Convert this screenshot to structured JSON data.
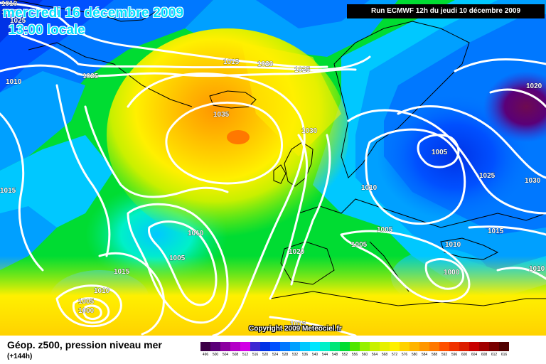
{
  "header": {
    "title_date": "mercredi 16 décembre 2009",
    "title_time": "13:00 locale",
    "run_label": "Run ECMWF 12h du jeudi 10 décembre 2009"
  },
  "map": {
    "copyright": "Copyright 2009 Meteociel.fr",
    "isobar_color": "#ffffff",
    "land_outline_color": "#000000",
    "isobar_labels": [
      {
        "text": "1010",
        "id": "iso-1010-topleft-a"
      },
      {
        "text": "1010",
        "id": "iso-1010-topleft-b"
      },
      {
        "text": "1025",
        "id": "iso-1025-topleft"
      },
      {
        "text": "1025",
        "id": "iso-1025-atlantic-north"
      },
      {
        "text": "1010",
        "id": "iso-1010-west"
      },
      {
        "text": "1015",
        "id": "iso-1015-north"
      },
      {
        "text": "1020",
        "id": "iso-1020-north"
      },
      {
        "text": "1025",
        "id": "iso-1025-north"
      },
      {
        "text": "1035",
        "id": "iso-1035-high"
      },
      {
        "text": "1030",
        "id": "iso-1030-britain"
      },
      {
        "text": "1005",
        "id": "iso-1005-scandinavia"
      },
      {
        "text": "1025",
        "id": "iso-1025-russia"
      },
      {
        "text": "1030",
        "id": "iso-1030-east"
      },
      {
        "text": "1020",
        "id": "iso-1020-ne"
      },
      {
        "text": "1010",
        "id": "iso-1010-europe"
      },
      {
        "text": "1015",
        "id": "iso-1015-west-edge"
      },
      {
        "text": "1010",
        "id": "iso-1010-atlantic-low"
      },
      {
        "text": "1005",
        "id": "iso-1005-atlantic-low"
      },
      {
        "text": "1015",
        "id": "iso-1015-atlantic"
      },
      {
        "text": "1010",
        "id": "iso-1010-sw"
      },
      {
        "text": "1005",
        "id": "iso-1005-sw"
      },
      {
        "text": "1000",
        "id": "iso-1000-sw"
      },
      {
        "text": "1020",
        "id": "iso-1020-iberia"
      },
      {
        "text": "1005",
        "id": "iso-1005-central-eu"
      },
      {
        "text": "1005",
        "id": "iso-1005-france"
      },
      {
        "text": "1010",
        "id": "iso-1010-balkans"
      },
      {
        "text": "1015",
        "id": "iso-1015-blacksea"
      },
      {
        "text": "1000",
        "id": "iso-1000-med"
      },
      {
        "text": "1010",
        "id": "iso-1010-se-edge"
      },
      {
        "text": "1015",
        "id": "iso-1015-morocco"
      }
    ]
  },
  "legend": {
    "title": "Géop. z500, pression niveau mer",
    "forecast_hour": "(+144h)",
    "scale_values": [
      "496",
      "500",
      "504",
      "508",
      "512",
      "516",
      "520",
      "524",
      "528",
      "532",
      "536",
      "540",
      "544",
      "548",
      "552",
      "556",
      "560",
      "564",
      "568",
      "572",
      "576",
      "580",
      "584",
      "588",
      "592",
      "596",
      "600",
      "604",
      "608",
      "612",
      "616"
    ],
    "scale_colors": [
      "#3c0046",
      "#5a0078",
      "#8c00a0",
      "#b400c8",
      "#d200e6",
      "#3c28d2",
      "#0032e6",
      "#0050ff",
      "#0078ff",
      "#00a0ff",
      "#00c8ff",
      "#00e6ff",
      "#00f0c8",
      "#00e678",
      "#00dc32",
      "#50e600",
      "#96f000",
      "#c8f000",
      "#e6f000",
      "#fff000",
      "#ffd200",
      "#ffb400",
      "#ff9600",
      "#ff7800",
      "#ff5000",
      "#f03200",
      "#dc1e00",
      "#c80000",
      "#a00000",
      "#780000",
      "#500000"
    ]
  }
}
